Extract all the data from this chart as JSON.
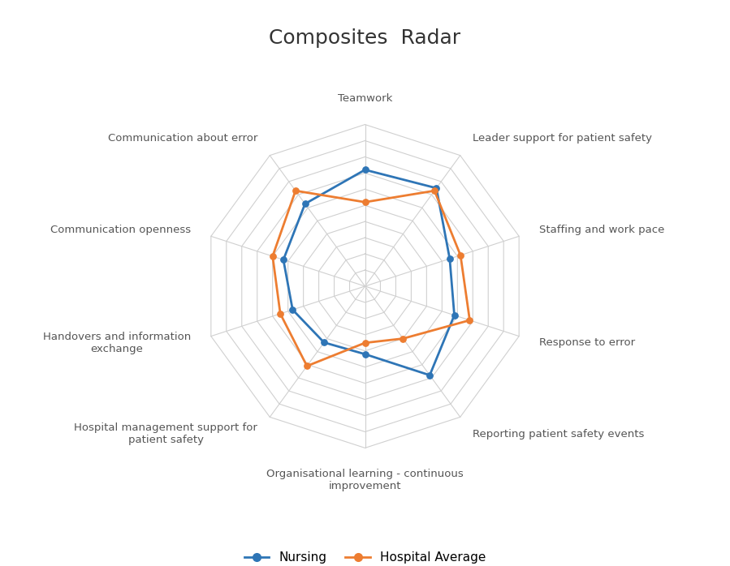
{
  "title": "Composites  Radar",
  "categories": [
    "Teamwork",
    "Leader support for patient safety",
    "Staffing and work pace",
    "Response to error",
    "Reporting patient safety events",
    "Organisational learning - continuous\nimprovement",
    "Hospital management support for\npatient safety",
    "Handovers and information\nexchange",
    "Communication openness",
    "Communication about error"
  ],
  "nursing": [
    0.72,
    0.75,
    0.55,
    0.58,
    0.68,
    0.42,
    0.43,
    0.47,
    0.53,
    0.63
  ],
  "hospital_avg": [
    0.52,
    0.73,
    0.62,
    0.68,
    0.4,
    0.35,
    0.61,
    0.55,
    0.6,
    0.73
  ],
  "nursing_color": "#2E75B6",
  "hospital_color": "#ED7D31",
  "grid_color": "#D0D0D0",
  "background_color": "#FFFFFF",
  "title_fontsize": 18,
  "label_fontsize": 9.5,
  "legend_fontsize": 11,
  "n_rings": 10,
  "ylim": [
    0,
    1.0
  ]
}
